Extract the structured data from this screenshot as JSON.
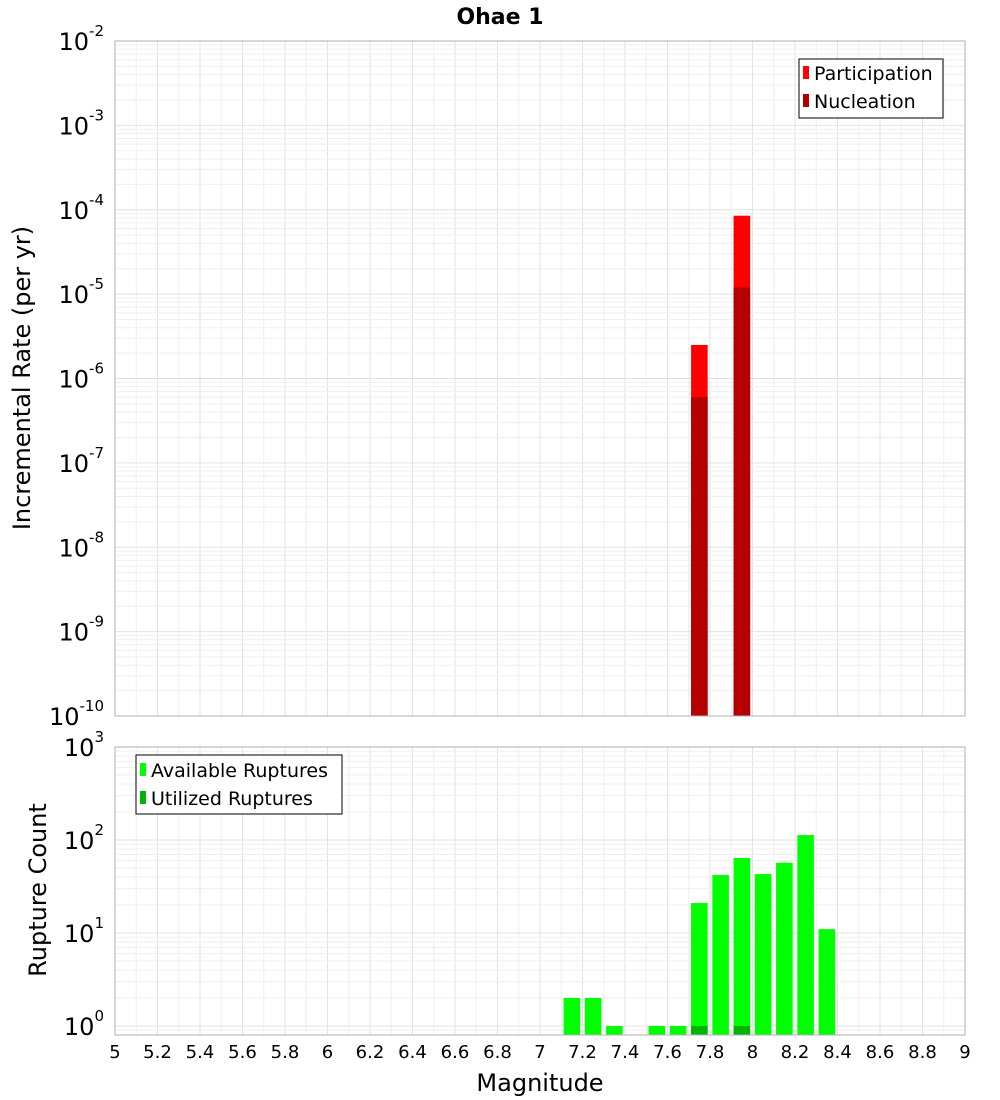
{
  "chart_data": [
    {
      "type": "bar",
      "title": "Ohae 1",
      "xlabel": "",
      "ylabel": "Incremental Rate (per yr)",
      "yscale": "log",
      "ylim": [
        1e-10,
        0.01
      ],
      "xlim": [
        5,
        9
      ],
      "ytick_exponents": [
        "-2",
        "-3",
        "-4",
        "-5",
        "-6",
        "-7",
        "-8",
        "-9",
        "-10"
      ],
      "legend_position": "top-right",
      "series": [
        {
          "name": "Participation",
          "color": "#ff0000",
          "x": [
            7.75,
            7.95
          ],
          "values": [
            2.5e-06,
            8.5e-05
          ]
        },
        {
          "name": "Nucleation",
          "color": "#b40000",
          "x": [
            7.75,
            7.95
          ],
          "values": [
            6e-07,
            1.2e-05
          ]
        }
      ]
    },
    {
      "type": "bar",
      "title": "",
      "xlabel": "Magnitude",
      "ylabel": "Rupture Count",
      "yscale": "log",
      "ylim": [
        0.8,
        1000
      ],
      "xlim": [
        5,
        9
      ],
      "ytick_exponents": [
        "3",
        "2",
        "1",
        "0"
      ],
      "xticks": [
        "5",
        "5.2",
        "5.4",
        "5.6",
        "5.8",
        "6",
        "6.2",
        "6.4",
        "6.6",
        "6.8",
        "7",
        "7.2",
        "7.4",
        "7.6",
        "7.8",
        "8",
        "8.2",
        "8.4",
        "8.6",
        "8.8",
        "9"
      ],
      "legend_position": "top-left",
      "series": [
        {
          "name": "Available Ruptures",
          "color": "#00ff00",
          "x": [
            7.15,
            7.25,
            7.35,
            7.55,
            7.65,
            7.75,
            7.85,
            7.95,
            8.05,
            8.15,
            8.25,
            8.35
          ],
          "values": [
            2,
            2,
            1,
            1,
            1,
            21,
            42,
            64,
            43,
            57,
            113,
            11
          ]
        },
        {
          "name": "Utilized Ruptures",
          "color": "#00b400",
          "x": [
            7.75,
            7.95
          ],
          "values": [
            1,
            1
          ]
        }
      ]
    }
  ]
}
